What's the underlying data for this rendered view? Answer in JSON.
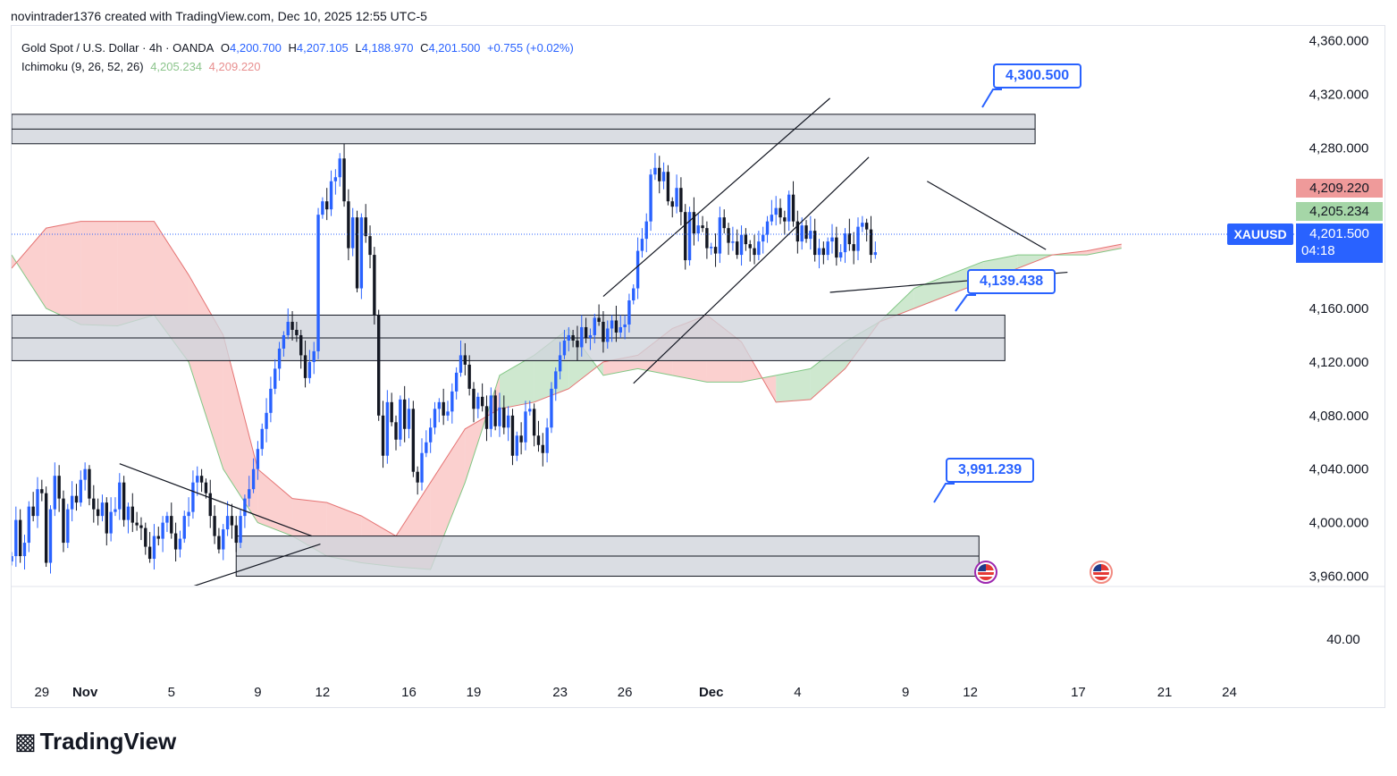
{
  "header": {
    "attribution": "novintrader1376 created with TradingView.com, Dec 10, 2025 12:55 UTC-5"
  },
  "legend": {
    "symbol": "Gold Spot / U.S. Dollar · 4h · OANDA",
    "o_label": "O",
    "o_value": "4,200.700",
    "h_label": "H",
    "h_value": "4,207.105",
    "l_label": "L",
    "l_value": "4,188.970",
    "c_label": "C",
    "c_value": "4,201.500",
    "change": "+0.755 (+0.02%)",
    "indicator": "Ichimoku (9, 26, 52, 26)",
    "ind_value1": "4,205.234",
    "ind_value2": "4,209.220"
  },
  "callouts": {
    "c1": "4,300.500",
    "c2": "4,139.438",
    "c3": "3,991.239"
  },
  "price_tags": {
    "span_b": "4,209.220",
    "span_a": "4,205.234",
    "last_price": "4,201.500",
    "countdown": "04:18",
    "symbol": "XAUUSD"
  },
  "brand": {
    "name": "TradingView"
  },
  "colors": {
    "up": "#2962ff",
    "down": "#131722",
    "cloud_green": "#a5d6a7",
    "cloud_red": "#f7a9a7",
    "zone": "#d1d4dc",
    "accent": "#2962ff",
    "tag_red": "#ef9a9a",
    "tag_green": "#a5d6a7"
  },
  "chart_data": {
    "type": "candlestick",
    "title": "Gold Spot / U.S. Dollar · 4h · OANDA",
    "y_ticks": [
      "4,360.000",
      "4,320.000",
      "4,280.000",
      "4,160.000",
      "4,120.000",
      "4,080.000",
      "4,040.000",
      "4,000.000",
      "3,960.000"
    ],
    "y_tick_values": [
      4360,
      4320,
      4280,
      4160,
      4120,
      4080,
      4040,
      4000,
      3960
    ],
    "sub_pane_tick": "40.00",
    "x_ticks": [
      "29",
      "Nov",
      "5",
      "9",
      "12",
      "16",
      "19",
      "23",
      "26",
      "Dec",
      "4",
      "9",
      "12",
      "17",
      "21",
      "24"
    ],
    "x_tick_days": [
      -2,
      0,
      4,
      8,
      11,
      15,
      18,
      22,
      25,
      29,
      33,
      38,
      41,
      46,
      50,
      53
    ],
    "ylim": [
      3953,
      4371
    ],
    "xlim": [
      -3.4,
      56
    ],
    "zones": [
      {
        "x0": -3.4,
        "x1": 44.0,
        "y0": 4283,
        "y1": 4305,
        "mid": 4294
      },
      {
        "x0": -3.4,
        "x1": 42.6,
        "y0": 4121,
        "y1": 4155,
        "mid": 4138
      },
      {
        "x0": 7.0,
        "x1": 41.4,
        "y0": 3960,
        "y1": 3990,
        "mid": 3975
      }
    ],
    "trendlines": [
      {
        "x0": 1.6,
        "y0": 4044,
        "x1": 10.5,
        "y1": 3990
      },
      {
        "x0": 3.8,
        "y0": 3946,
        "x1": 10.9,
        "y1": 3984
      },
      {
        "x0": 24.0,
        "y0": 4169,
        "x1": 34.5,
        "y1": 4317
      },
      {
        "x0": 25.4,
        "y0": 4104,
        "x1": 36.3,
        "y1": 4273
      },
      {
        "x0": 39.0,
        "y0": 4255,
        "x1": 44.5,
        "y1": 4204
      },
      {
        "x0": 34.5,
        "y0": 4172,
        "x1": 45.5,
        "y1": 4187
      }
    ],
    "cloud": {
      "x": [
        -3.4,
        -1.8,
        -0.2,
        1.5,
        3.2,
        4.8,
        6.4,
        8.0,
        9.6,
        11.2,
        12.8,
        14.4,
        16.0,
        17.6,
        19.2,
        20.8,
        22.4,
        24.0,
        25.6,
        27.2,
        28.8,
        30.4,
        32.0,
        33.6,
        35.2,
        36.8,
        38.4,
        40.0,
        41.6,
        43.2,
        44.8,
        46.4,
        48.0
      ],
      "span_a": [
        4200,
        4160,
        4148,
        4147,
        4155,
        4120,
        4040,
        4000,
        3990,
        3975,
        3970,
        3967,
        3965,
        4030,
        4110,
        4125,
        4145,
        4110,
        4115,
        4110,
        4105,
        4105,
        4110,
        4115,
        4135,
        4150,
        4175,
        4185,
        4195,
        4200,
        4200,
        4200,
        4205
      ],
      "span_b": [
        4190,
        4220,
        4225,
        4225,
        4225,
        4185,
        4140,
        4040,
        4018,
        4015,
        4005,
        3990,
        4030,
        4070,
        4085,
        4090,
        4100,
        4120,
        4125,
        4145,
        4155,
        4135,
        4090,
        4092,
        4115,
        4150,
        4160,
        4170,
        4180,
        4190,
        4200,
        4203,
        4208
      ]
    },
    "candles": {
      "start_day": -3.4,
      "step_days": 0.2,
      "closes": [
        3975,
        4002,
        3975,
        3985,
        4012,
        4005,
        4025,
        4022,
        3970,
        4010,
        4035,
        4018,
        3985,
        4010,
        4020,
        4015,
        4032,
        4040,
        4018,
        4010,
        4005,
        4015,
        3992,
        4008,
        4010,
        4030,
        4002,
        4012,
        4000,
        3998,
        3996,
        3982,
        3973,
        3990,
        3988,
        4000,
        4005,
        3992,
        3980,
        3988,
        4005,
        4008,
        4030,
        4035,
        4030,
        4022,
        4005,
        3990,
        3980,
        3995,
        4005,
        3998,
        3985,
        4005,
        4018,
        4025,
        4040,
        4055,
        4070,
        4082,
        4100,
        4115,
        4130,
        4140,
        4150,
        4144,
        4140,
        4125,
        4108,
        4120,
        4128,
        4230,
        4240,
        4234,
        4255,
        4258,
        4272,
        4240,
        4205,
        4228,
        4175,
        4228,
        4214,
        4200,
        4155,
        4080,
        4050,
        4090,
        4075,
        4062,
        4092,
        4070,
        4085,
        4038,
        4030,
        4052,
        4060,
        4071,
        4085,
        4090,
        4080,
        4083,
        4098,
        4112,
        4125,
        4118,
        4100,
        4085,
        4094,
        4087,
        4070,
        4095,
        4072,
        4086,
        4071,
        4080,
        4050,
        4065,
        4060,
        4083,
        4085,
        4065,
        4058,
        4052,
        4071,
        4100,
        4113,
        4125,
        4136,
        4140,
        4136,
        4131,
        4146,
        4138,
        4140,
        4153,
        4150,
        4135,
        4145,
        4151,
        4142,
        4146,
        4148,
        4166,
        4175,
        4203,
        4212,
        4225,
        4260,
        4265,
        4255,
        4262,
        4240,
        4236,
        4250,
        4232,
        4196,
        4232,
        4216,
        4222,
        4220,
        4205,
        4206,
        4201,
        4228,
        4220,
        4209,
        4210,
        4200,
        4215,
        4208,
        4205,
        4200,
        4210,
        4215,
        4225,
        4230,
        4235,
        4228,
        4225,
        4245,
        4225,
        4210,
        4222,
        4212,
        4218,
        4200,
        4205,
        4200,
        4210,
        4213,
        4198,
        4202,
        4216,
        4208,
        4203,
        4221,
        4224,
        4219,
        4200,
        4202
      ]
    }
  }
}
